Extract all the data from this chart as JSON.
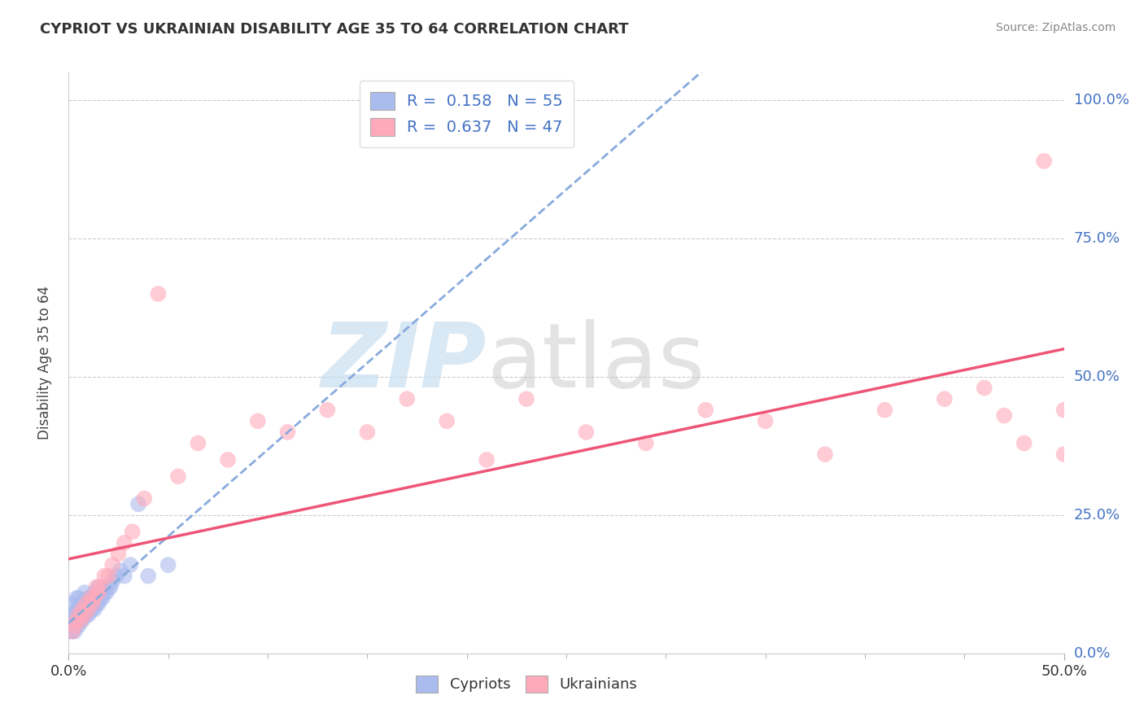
{
  "title": "CYPRIOT VS UKRAINIAN DISABILITY AGE 35 TO 64 CORRELATION CHART",
  "source": "Source: ZipAtlas.com",
  "xlim": [
    0.0,
    0.5
  ],
  "ylim": [
    0.0,
    1.05
  ],
  "cypriot_R": 0.158,
  "cypriot_N": 55,
  "ukrainian_R": 0.637,
  "ukrainian_N": 47,
  "cypriot_color": "#aabbee",
  "ukrainian_color": "#ffaabb",
  "cypriot_line_color": "#88aadd",
  "ukrainian_line_color": "#ee5577",
  "watermark_zip": "ZIP",
  "watermark_atlas": "atlas",
  "watermark_color_zip": "#c8dff0",
  "watermark_color_atlas": "#c8c8c8",
  "cypriot_x": [
    0.001,
    0.001,
    0.001,
    0.002,
    0.002,
    0.002,
    0.003,
    0.003,
    0.003,
    0.003,
    0.004,
    0.004,
    0.004,
    0.004,
    0.005,
    0.005,
    0.005,
    0.005,
    0.006,
    0.006,
    0.006,
    0.007,
    0.007,
    0.007,
    0.008,
    0.008,
    0.008,
    0.009,
    0.009,
    0.01,
    0.01,
    0.01,
    0.011,
    0.011,
    0.012,
    0.012,
    0.013,
    0.013,
    0.014,
    0.015,
    0.015,
    0.016,
    0.017,
    0.018,
    0.019,
    0.02,
    0.021,
    0.022,
    0.024,
    0.026,
    0.028,
    0.031,
    0.035,
    0.04,
    0.05
  ],
  "cypriot_y": [
    0.04,
    0.05,
    0.06,
    0.04,
    0.05,
    0.07,
    0.04,
    0.06,
    0.07,
    0.09,
    0.05,
    0.06,
    0.08,
    0.1,
    0.05,
    0.06,
    0.08,
    0.1,
    0.06,
    0.07,
    0.09,
    0.06,
    0.07,
    0.09,
    0.07,
    0.08,
    0.11,
    0.07,
    0.09,
    0.07,
    0.08,
    0.1,
    0.08,
    0.1,
    0.08,
    0.1,
    0.08,
    0.11,
    0.09,
    0.09,
    0.12,
    0.1,
    0.1,
    0.11,
    0.11,
    0.12,
    0.12,
    0.13,
    0.14,
    0.15,
    0.14,
    0.16,
    0.27,
    0.14,
    0.16
  ],
  "ukrainian_x": [
    0.002,
    0.003,
    0.004,
    0.005,
    0.006,
    0.007,
    0.008,
    0.009,
    0.01,
    0.011,
    0.012,
    0.013,
    0.014,
    0.015,
    0.016,
    0.018,
    0.02,
    0.022,
    0.025,
    0.028,
    0.032,
    0.038,
    0.045,
    0.055,
    0.065,
    0.08,
    0.095,
    0.11,
    0.13,
    0.15,
    0.17,
    0.19,
    0.21,
    0.23,
    0.26,
    0.29,
    0.32,
    0.35,
    0.38,
    0.41,
    0.44,
    0.46,
    0.47,
    0.48,
    0.49,
    0.5,
    0.5
  ],
  "ukrainian_y": [
    0.04,
    0.05,
    0.06,
    0.07,
    0.06,
    0.08,
    0.07,
    0.09,
    0.08,
    0.1,
    0.09,
    0.1,
    0.12,
    0.11,
    0.12,
    0.14,
    0.14,
    0.16,
    0.18,
    0.2,
    0.22,
    0.28,
    0.65,
    0.32,
    0.38,
    0.35,
    0.42,
    0.4,
    0.44,
    0.4,
    0.46,
    0.42,
    0.35,
    0.46,
    0.4,
    0.38,
    0.44,
    0.42,
    0.36,
    0.44,
    0.46,
    0.48,
    0.43,
    0.38,
    0.89,
    0.44,
    0.36
  ]
}
